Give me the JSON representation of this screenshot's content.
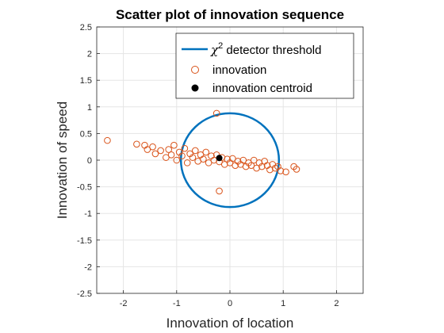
{
  "chart_data": {
    "type": "scatter",
    "title": "Scatter plot of innovation sequence",
    "xlabel": "Innovation of location",
    "ylabel": "Innovation of speed",
    "xlim": [
      -2.5,
      2.5
    ],
    "ylim": [
      -2.5,
      2.5
    ],
    "xticks": [
      -2,
      -1,
      0,
      1,
      2
    ],
    "yticks": [
      -2.5,
      -2,
      -1.5,
      -1,
      -0.5,
      0,
      0.5,
      1,
      1.5,
      2,
      2.5
    ],
    "grid": true,
    "legend_position": "top-right",
    "legend": {
      "threshold_prefix": "χ",
      "threshold_sup": "2",
      "threshold_suffix": " detector threshold",
      "innovation": "innovation",
      "centroid": "innovation centroid"
    },
    "colors": {
      "threshold": "#0072BD",
      "innovation": "#D95319",
      "centroid": "#000000",
      "grid": "#e5e5e5",
      "axis": "#262626"
    },
    "series": [
      {
        "name": "χ2 detector threshold",
        "kind": "circle",
        "center": [
          -0.0,
          0.0
        ],
        "radius_x": 0.92,
        "radius_y": 0.88
      },
      {
        "name": "innovation",
        "kind": "points",
        "points": [
          [
            -2.3,
            0.37
          ],
          [
            -1.75,
            0.3
          ],
          [
            -1.6,
            0.28
          ],
          [
            -1.55,
            0.2
          ],
          [
            -1.45,
            0.25
          ],
          [
            -1.4,
            0.12
          ],
          [
            -1.3,
            0.18
          ],
          [
            -1.2,
            0.05
          ],
          [
            -1.15,
            0.2
          ],
          [
            -1.1,
            0.1
          ],
          [
            -1.05,
            0.28
          ],
          [
            -1.0,
            0.0
          ],
          [
            -0.95,
            0.15
          ],
          [
            -0.9,
            0.08
          ],
          [
            -0.85,
            0.22
          ],
          [
            -0.8,
            -0.05
          ],
          [
            -0.75,
            0.12
          ],
          [
            -0.7,
            0.05
          ],
          [
            -0.65,
            0.18
          ],
          [
            -0.6,
            -0.02
          ],
          [
            -0.55,
            0.1
          ],
          [
            -0.5,
            0.02
          ],
          [
            -0.45,
            0.15
          ],
          [
            -0.4,
            -0.05
          ],
          [
            -0.35,
            0.08
          ],
          [
            -0.3,
            0.0
          ],
          [
            -0.25,
            0.1
          ],
          [
            -0.2,
            -0.03
          ],
          [
            -0.15,
            0.05
          ],
          [
            -0.1,
            -0.08
          ],
          [
            -0.05,
            0.02
          ],
          [
            0.0,
            -0.05
          ],
          [
            0.05,
            0.03
          ],
          [
            0.1,
            -0.1
          ],
          [
            0.15,
            -0.02
          ],
          [
            0.2,
            -0.08
          ],
          [
            0.25,
            0.0
          ],
          [
            0.3,
            -0.12
          ],
          [
            0.35,
            -0.05
          ],
          [
            0.4,
            -0.1
          ],
          [
            0.45,
            0.0
          ],
          [
            0.5,
            -0.15
          ],
          [
            0.55,
            -0.05
          ],
          [
            0.6,
            -0.12
          ],
          [
            0.65,
            -0.02
          ],
          [
            0.7,
            -0.1
          ],
          [
            0.75,
            -0.18
          ],
          [
            0.8,
            -0.08
          ],
          [
            0.85,
            -0.15
          ],
          [
            0.9,
            -0.12
          ],
          [
            0.95,
            -0.2
          ],
          [
            1.05,
            -0.22
          ],
          [
            1.2,
            -0.12
          ],
          [
            1.25,
            -0.17
          ],
          [
            -0.25,
            0.88
          ],
          [
            -0.2,
            -0.58
          ]
        ]
      },
      {
        "name": "innovation centroid",
        "kind": "point",
        "point": [
          -0.2,
          0.04
        ]
      }
    ]
  }
}
